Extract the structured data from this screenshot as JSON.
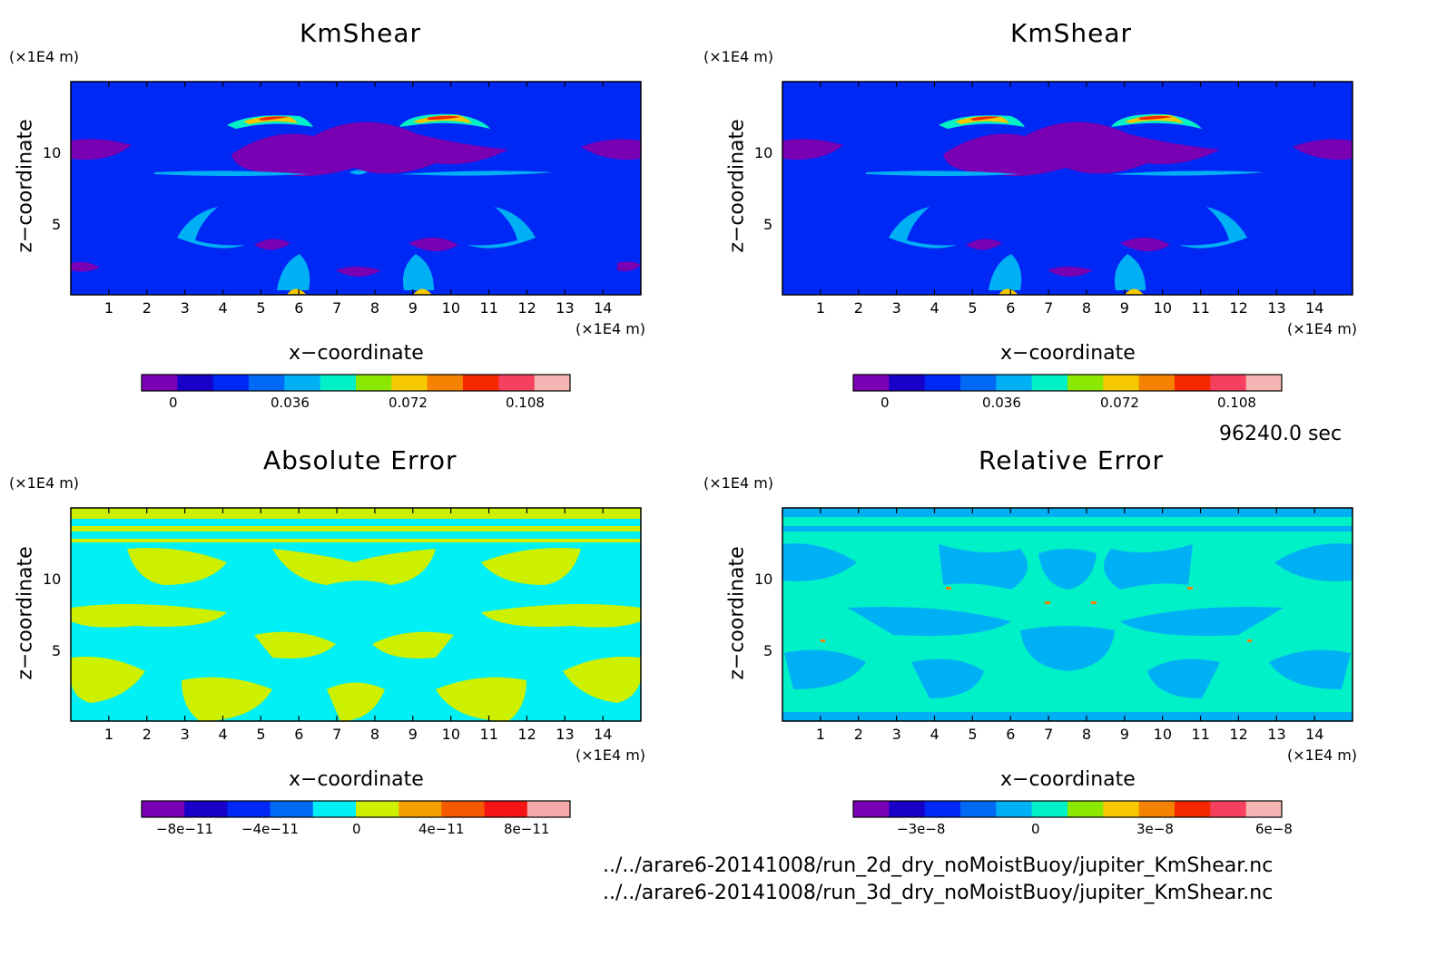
{
  "footer": {
    "time": "96240.0 sec",
    "file1": "../../arare6-20141008/run_2d_dry_noMoistBuoy/jupiter_KmShear.nc",
    "file2": "../../arare6-20141008/run_3d_dry_noMoistBuoy/jupiter_KmShear.nc"
  },
  "chart_data": [
    {
      "type": "heatmap",
      "title": "KmShear",
      "xlabel": "x−coordinate",
      "ylabel": "z−coordinate",
      "x_unit": "(×1E4 m)",
      "y_unit": "(×1E4 m)",
      "xlim": [
        0,
        15
      ],
      "ylim": [
        0,
        15
      ],
      "x_ticks": [
        "1",
        "2",
        "3",
        "4",
        "5",
        "6",
        "7",
        "8",
        "9",
        "10",
        "11",
        "12",
        "13",
        "14"
      ],
      "y_ticks": [
        "5",
        "10"
      ],
      "colorbar": {
        "ticks": [
          "0",
          "0.036",
          "0.072",
          "0.108"
        ],
        "colors": [
          "#7a00b4",
          "#1800c8",
          "#0028f5",
          "#006af5",
          "#00b0f5",
          "#00f0c8",
          "#8ce800",
          "#f5c800",
          "#f58200",
          "#f52800",
          "#f54060",
          "#f5b4b4"
        ]
      }
    },
    {
      "type": "heatmap",
      "title": "KmShear",
      "xlabel": "x−coordinate",
      "ylabel": "z−coordinate",
      "x_unit": "(×1E4 m)",
      "y_unit": "(×1E4 m)",
      "xlim": [
        0,
        15
      ],
      "ylim": [
        0,
        15
      ],
      "x_ticks": [
        "1",
        "2",
        "3",
        "4",
        "5",
        "6",
        "7",
        "8",
        "9",
        "10",
        "11",
        "12",
        "13",
        "14"
      ],
      "y_ticks": [
        "5",
        "10"
      ],
      "colorbar": {
        "ticks": [
          "0",
          "0.036",
          "0.072",
          "0.108"
        ],
        "colors": [
          "#7a00b4",
          "#1800c8",
          "#0028f5",
          "#006af5",
          "#00b0f5",
          "#00f0c8",
          "#8ce800",
          "#f5c800",
          "#f58200",
          "#f52800",
          "#f54060",
          "#f5b4b4"
        ]
      }
    },
    {
      "type": "heatmap",
      "title": "Absolute Error",
      "xlabel": "x−coordinate",
      "ylabel": "z−coordinate",
      "x_unit": "(×1E4 m)",
      "y_unit": "(×1E4 m)",
      "xlim": [
        0,
        15
      ],
      "ylim": [
        0,
        15
      ],
      "x_ticks": [
        "1",
        "2",
        "3",
        "4",
        "5",
        "6",
        "7",
        "8",
        "9",
        "10",
        "11",
        "12",
        "13",
        "14"
      ],
      "y_ticks": [
        "5",
        "10"
      ],
      "colorbar": {
        "ticks": [
          "−8e−11",
          "−4e−11",
          "0",
          "4e−11",
          "8e−11"
        ],
        "colors": [
          "#7a00b4",
          "#1800c8",
          "#0028f5",
          "#006af5",
          "#00f0f5",
          "#ccf000",
          "#f5a000",
          "#f55a00",
          "#f51414",
          "#f5a8a8"
        ]
      }
    },
    {
      "type": "heatmap",
      "title": "Relative Error",
      "xlabel": "x−coordinate",
      "ylabel": "z−coordinate",
      "x_unit": "(×1E4 m)",
      "y_unit": "(×1E4 m)",
      "xlim": [
        0,
        15
      ],
      "ylim": [
        0,
        15
      ],
      "x_ticks": [
        "1",
        "2",
        "3",
        "4",
        "5",
        "6",
        "7",
        "8",
        "9",
        "10",
        "11",
        "12",
        "13",
        "14"
      ],
      "y_ticks": [
        "5",
        "10"
      ],
      "colorbar": {
        "ticks": [
          "−3e−8",
          "0",
          "3e−8",
          "6e−8"
        ],
        "colors": [
          "#7a00b4",
          "#1800c8",
          "#0028f5",
          "#006af5",
          "#00b0f5",
          "#00f0c8",
          "#8ce800",
          "#f5c800",
          "#f58200",
          "#f52800",
          "#f54060",
          "#f5b4b4"
        ]
      }
    }
  ]
}
